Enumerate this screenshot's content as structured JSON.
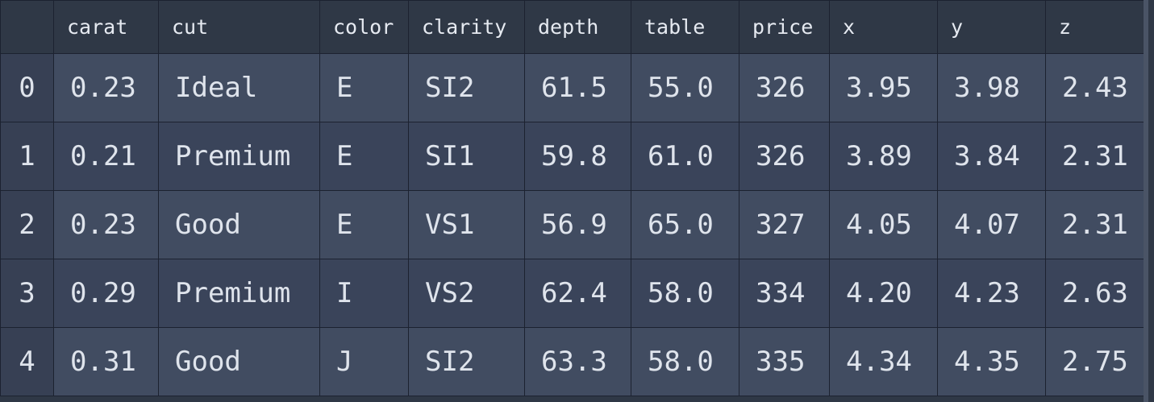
{
  "table": {
    "columns": [
      "",
      "carat",
      "cut",
      "color",
      "clarity",
      "depth",
      "table",
      "price",
      "x",
      "y",
      "z"
    ],
    "rows": [
      [
        "0",
        "0.23",
        "Ideal",
        "E",
        "SI2",
        "61.5",
        "55.0",
        "326",
        "3.95",
        "3.98",
        "2.43"
      ],
      [
        "1",
        "0.21",
        "Premium",
        "E",
        "SI1",
        "59.8",
        "61.0",
        "326",
        "3.89",
        "3.84",
        "2.31"
      ],
      [
        "2",
        "0.23",
        "Good",
        "E",
        "VS1",
        "56.9",
        "65.0",
        "327",
        "4.05",
        "4.07",
        "2.31"
      ],
      [
        "3",
        "0.29",
        "Premium",
        "I",
        "VS2",
        "62.4",
        "58.0",
        "334",
        "4.20",
        "4.23",
        "2.63"
      ],
      [
        "4",
        "0.31",
        "Good",
        "J",
        "SI2",
        "63.3",
        "58.0",
        "335",
        "4.34",
        "4.35",
        "2.75"
      ]
    ]
  },
  "colors": {
    "background": "#2f3846",
    "row_odd": "#414c61",
    "row_even": "#3a445a",
    "border": "#1c2230",
    "text": "#dfe4ec"
  }
}
